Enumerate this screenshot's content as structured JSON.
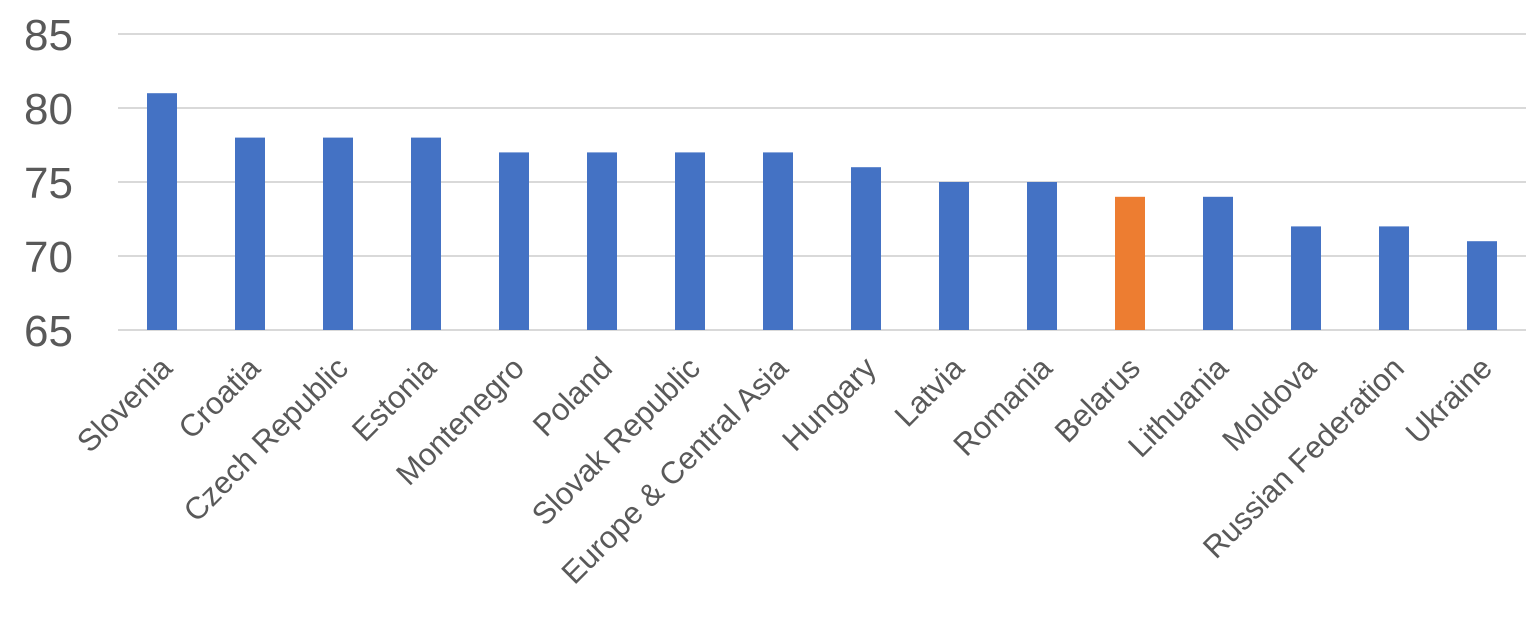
{
  "chart_data": {
    "type": "bar",
    "categories": [
      "Slovenia",
      "Croatia",
      "Czech Republic",
      "Estonia",
      "Montenegro",
      "Poland",
      "Slovak Republic",
      "Europe & Central Asia",
      "Hungary",
      "Latvia",
      "Romania",
      "Belarus",
      "Lithuania",
      "Moldova",
      "Russian Federation",
      "Ukraine"
    ],
    "values": [
      81,
      78,
      78,
      78,
      77,
      77,
      77,
      77,
      76,
      75,
      75,
      74,
      74,
      72,
      72,
      71
    ],
    "ylim": [
      65,
      85
    ],
    "yticks": [
      65,
      70,
      75,
      80,
      85
    ],
    "grid": true,
    "colors": {
      "default": "#4472C4",
      "highlight": "#ED7D31",
      "highlight_category": "Belarus",
      "gridline": "#D9D9D9",
      "text": "#595959"
    }
  }
}
